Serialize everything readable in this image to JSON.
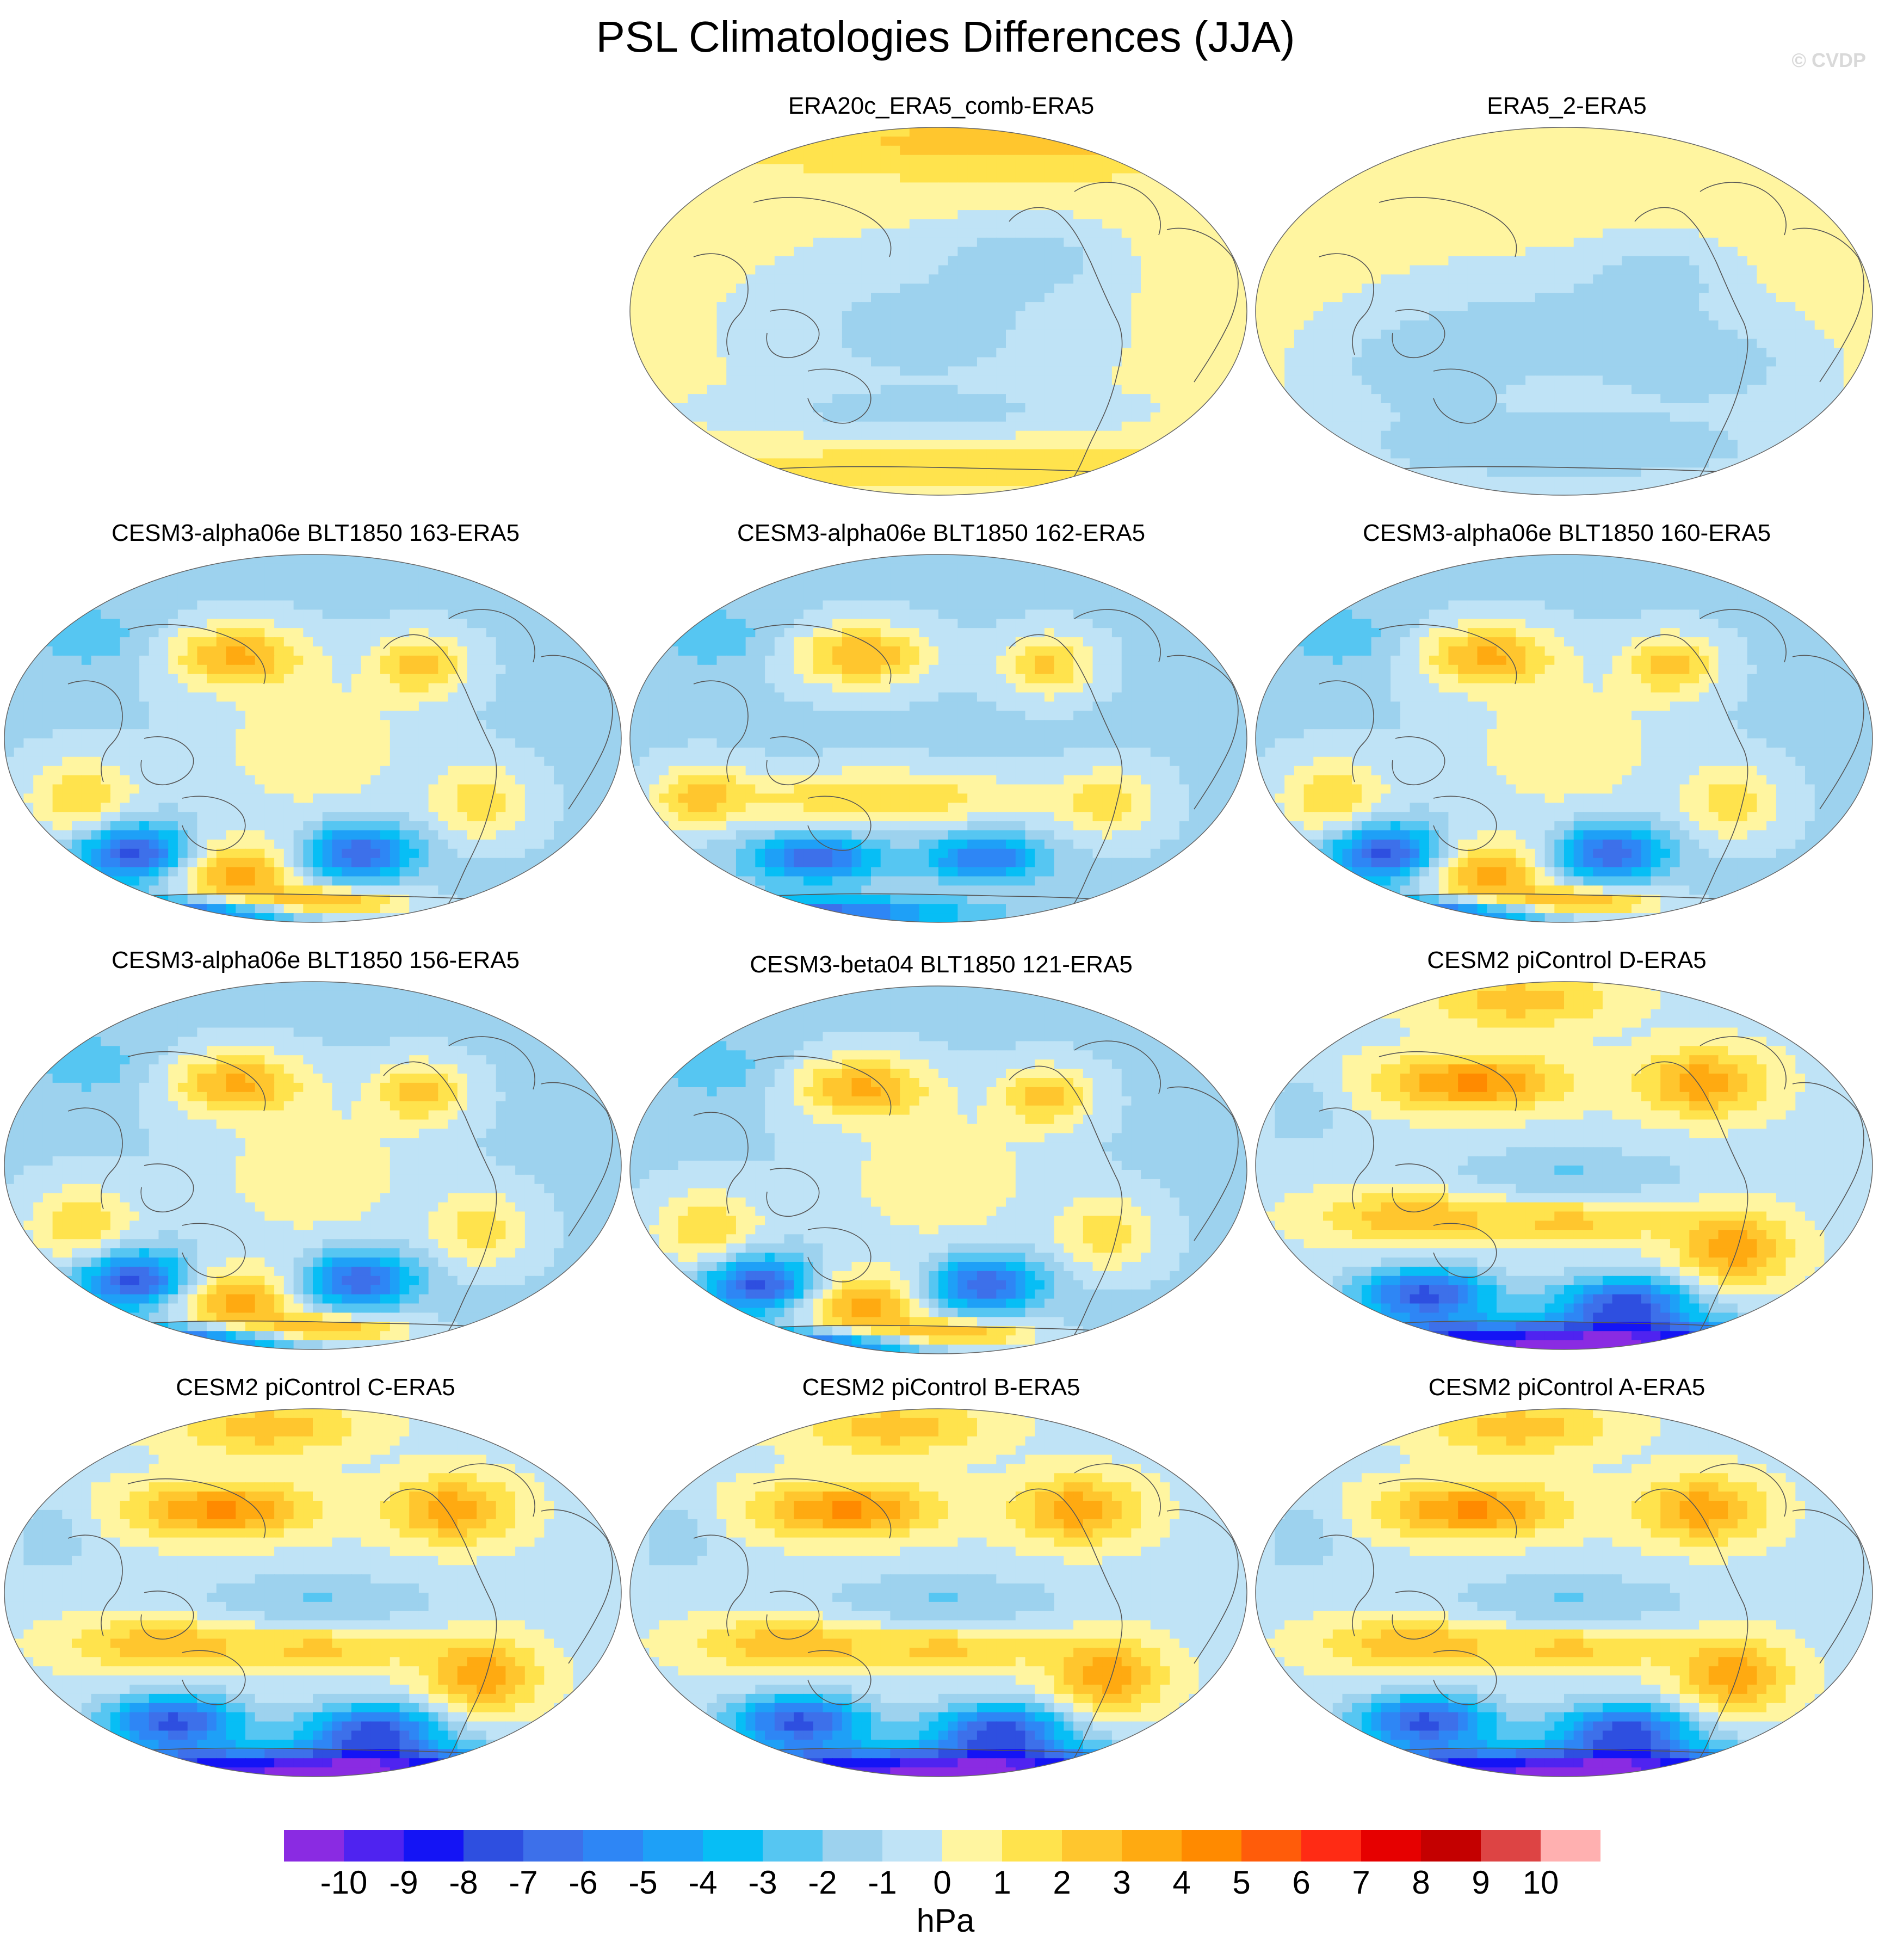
{
  "title": "PSL Climatologies Differences (JJA)",
  "credit": "© CVDP",
  "colorbar": {
    "unit": "hPa",
    "labels": [
      "-10",
      "-9",
      "-8",
      "-7",
      "-6",
      "-5",
      "-4",
      "-3",
      "-2",
      "-1",
      "0",
      "1",
      "2",
      "3",
      "4",
      "5",
      "6",
      "7",
      "8",
      "9",
      "10"
    ],
    "colors": [
      "#8a2be2",
      "#4f23f0",
      "#1414f5",
      "#2e4fe0",
      "#3d70ea",
      "#2e86f5",
      "#1ea0f7",
      "#07bef5",
      "#56c6f2",
      "#9dd2ee",
      "#bfe3f6",
      "#fff5a0",
      "#ffe34d",
      "#ffc62e",
      "#ffaa11",
      "#ff8a00",
      "#ff5c0a",
      "#ff2b14",
      "#e60000",
      "#c40000",
      "#dd4444",
      "#ffb0b0"
    ]
  },
  "panels": [
    {
      "title": "ERA20c_ERA5_comb-ERA5",
      "kind": "reanalysis_a"
    },
    {
      "title": "ERA5_2-ERA5",
      "kind": "reanalysis_b"
    },
    {
      "title": "CESM3-alpha06e BLT1850 163-ERA5",
      "kind": "cesm3"
    },
    {
      "title": "CESM3-alpha06e BLT1850 162-ERA5",
      "kind": "cesm3_mild"
    },
    {
      "title": "CESM3-alpha06e BLT1850 160-ERA5",
      "kind": "cesm3"
    },
    {
      "title": "CESM3-alpha06e BLT1850 156-ERA5",
      "kind": "cesm3"
    },
    {
      "title": "CESM3-beta04 BLT1850 121-ERA5",
      "kind": "cesm3"
    },
    {
      "title": "CESM2 piControl D-ERA5",
      "kind": "cesm2"
    },
    {
      "title": "CESM2 piControl C-ERA5",
      "kind": "cesm2"
    },
    {
      "title": "CESM2 piControl B-ERA5",
      "kind": "cesm2"
    },
    {
      "title": "CESM2 piControl A-ERA5",
      "kind": "cesm2"
    }
  ]
}
